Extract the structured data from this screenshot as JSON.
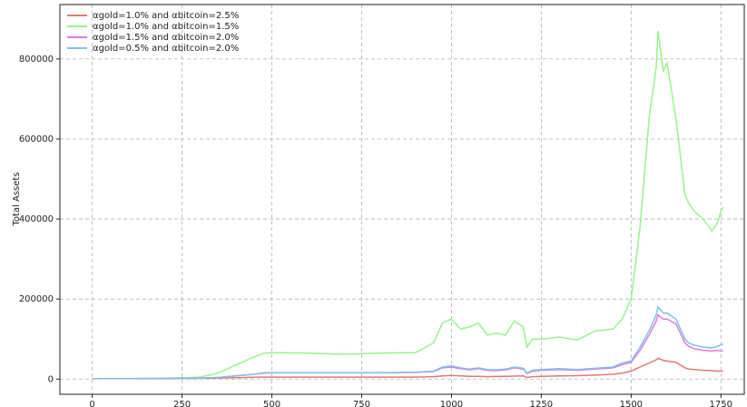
{
  "chart_data": {
    "type": "line",
    "ylabel": "Total Assets",
    "x": [
      0,
      100,
      200,
      300,
      350,
      400,
      450,
      480,
      500,
      600,
      700,
      800,
      900,
      950,
      975,
      1000,
      1025,
      1050,
      1075,
      1100,
      1125,
      1150,
      1175,
      1200,
      1210,
      1225,
      1250,
      1300,
      1350,
      1400,
      1450,
      1475,
      1500,
      1525,
      1550,
      1570,
      1575,
      1590,
      1600,
      1625,
      1650,
      1660,
      1675,
      1700,
      1725,
      1740,
      1750,
      1756
    ],
    "series": [
      {
        "name": "αgold=1.0% and αbitcoin=2.5%",
        "color": "#e07a72",
        "values": [
          1000,
          1000,
          1500,
          2000,
          2500,
          3500,
          4500,
          5000,
          5000,
          5000,
          5000,
          5000,
          5000,
          6000,
          8000,
          9000,
          8000,
          7000,
          7000,
          6000,
          6500,
          7000,
          7500,
          8000,
          4000,
          6000,
          7000,
          8000,
          8500,
          10000,
          12000,
          15000,
          20000,
          30000,
          40000,
          48000,
          52000,
          47000,
          45000,
          42000,
          28000,
          25000,
          24000,
          22000,
          21000,
          20000,
          20000,
          20000
        ]
      },
      {
        "name": "αgold=1.0% and αbitcoin=1.5%",
        "color": "#99f28f",
        "values": [
          1000,
          1000,
          2000,
          5000,
          15000,
          35000,
          55000,
          65000,
          66000,
          65000,
          62000,
          65000,
          66000,
          90000,
          140000,
          150000,
          125000,
          130000,
          140000,
          110000,
          115000,
          110000,
          145000,
          130000,
          80000,
          100000,
          100000,
          105000,
          98000,
          120000,
          125000,
          150000,
          200000,
          380000,
          650000,
          780000,
          870000,
          770000,
          790000,
          650000,
          460000,
          440000,
          420000,
          400000,
          370000,
          390000,
          420000,
          430000
        ]
      },
      {
        "name": "αgold=1.5% and αbitcoin=2.0%",
        "color": "#dd7ce3",
        "values": [
          1000,
          1000,
          1500,
          2500,
          4000,
          8000,
          12000,
          15000,
          15500,
          15500,
          15500,
          15500,
          16500,
          19000,
          28000,
          30000,
          26000,
          23000,
          26000,
          22000,
          21000,
          23000,
          28000,
          25000,
          14000,
          20000,
          22000,
          24000,
          22000,
          25000,
          28000,
          36000,
          42000,
          72000,
          110000,
          145000,
          160000,
          150000,
          150000,
          138000,
          90000,
          82000,
          76000,
          72000,
          70000,
          72000,
          70000,
          70000
        ]
      },
      {
        "name": "αgold=0.5% and αbitcoin=2.0%",
        "color": "#83bfea",
        "values": [
          1000,
          1000,
          1500,
          2500,
          4000,
          8000,
          12000,
          16000,
          16000,
          16000,
          16000,
          16000,
          17000,
          20000,
          30000,
          33000,
          28000,
          25000,
          28000,
          24000,
          23000,
          25000,
          30000,
          27000,
          15000,
          22000,
          24000,
          26000,
          24000,
          27000,
          30000,
          40000,
          45000,
          80000,
          120000,
          160000,
          180000,
          165000,
          165000,
          150000,
          100000,
          90000,
          85000,
          80000,
          78000,
          82000,
          85000,
          88000
        ]
      }
    ],
    "xlim": [
      -90,
      1815
    ],
    "ylim": [
      -38000,
      936000
    ],
    "xticks": [
      0,
      250,
      500,
      750,
      1000,
      1250,
      1500,
      1750
    ],
    "yticks": [
      0,
      200000,
      400000,
      600000,
      800000
    ],
    "grid": true,
    "legend": "upper left"
  }
}
